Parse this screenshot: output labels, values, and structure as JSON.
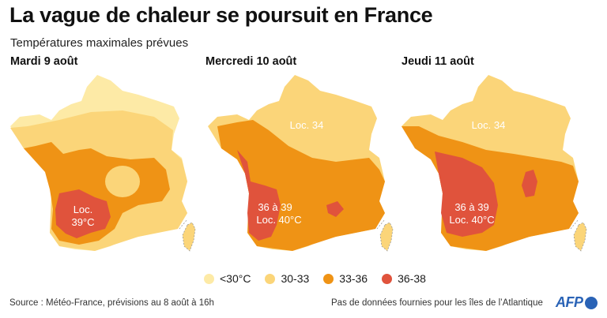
{
  "title": "La vague de chaleur se poursuit en France",
  "subtitle": "Températures maximales prévues",
  "colors": {
    "lt30": "#fdeaa6",
    "c30_33": "#fbd579",
    "c33_36": "#ef9315",
    "c36_38": "#e0533c",
    "corsica_outline": "#999999",
    "afp_blue": "#2a63b6"
  },
  "maps": [
    {
      "day": "Mardi 9 août",
      "labels": [
        {
          "text": "Loc.",
          "color": "#ffffff"
        },
        {
          "text": "39°C",
          "color": "#ffffff"
        }
      ]
    },
    {
      "day": "Mercredi 10 août",
      "labels": [
        {
          "text": "Loc. 34",
          "color": "#ffffff"
        },
        {
          "text": "36 à 39",
          "color": "#ffffff"
        },
        {
          "text": "Loc. 40°C",
          "color": "#ffffff"
        }
      ]
    },
    {
      "day": "Jeudi 11 août",
      "labels": [
        {
          "text": "Loc. 34",
          "color": "#ffffff"
        },
        {
          "text": "36 à 39",
          "color": "#ffffff"
        },
        {
          "text": "Loc. 40°C",
          "color": "#ffffff"
        }
      ]
    }
  ],
  "legend": [
    {
      "label": "<30°C",
      "color": "#fdeaa6"
    },
    {
      "label": "30-33",
      "color": "#fbd579"
    },
    {
      "label": "33-36",
      "color": "#ef9315"
    },
    {
      "label": "36-38",
      "color": "#e0533c"
    }
  ],
  "source": "Source : Météo-France, prévisions au 8 août à 16h",
  "note": "Pas de données fournies pour les îles de l’Atlantique",
  "logo": "AFP"
}
